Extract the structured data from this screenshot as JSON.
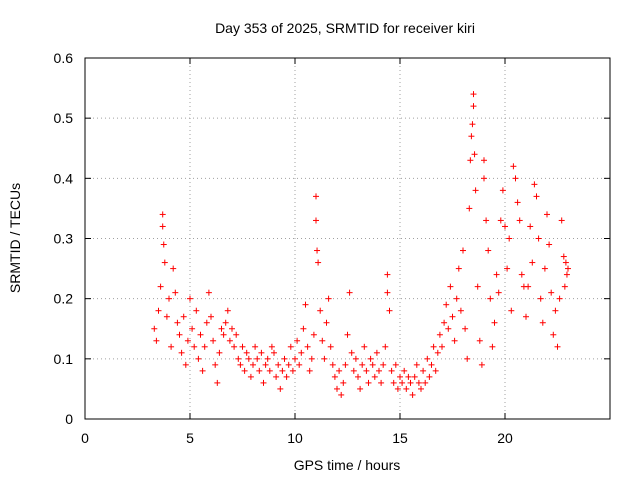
{
  "chart_data": {
    "type": "scatter",
    "title": "Day 353 of 2025, SRMTID for receiver kiri",
    "xlabel": "GPS time / hours",
    "ylabel": "SRMTID / TECUs",
    "xlim": [
      0,
      25
    ],
    "ylim": [
      0,
      0.6
    ],
    "xticks": [
      0,
      5,
      10,
      15,
      20
    ],
    "xtick_labels": [
      "0",
      "5",
      "10",
      "15",
      "20"
    ],
    "yticks": [
      0,
      0.1,
      0.2,
      0.3,
      0.4,
      0.5,
      0.6
    ],
    "ytick_labels": [
      "0",
      "0.1",
      "0.2",
      "0.3",
      "0.4",
      "0.5",
      "0.6"
    ],
    "grid": true,
    "marker": "+",
    "color": "#ff0000",
    "series": [
      {
        "name": "SRMTID",
        "points": [
          [
            3.3,
            0.15
          ],
          [
            3.4,
            0.13
          ],
          [
            3.5,
            0.18
          ],
          [
            3.6,
            0.22
          ],
          [
            3.7,
            0.34
          ],
          [
            3.7,
            0.32
          ],
          [
            3.75,
            0.29
          ],
          [
            3.8,
            0.26
          ],
          [
            3.9,
            0.17
          ],
          [
            4.0,
            0.2
          ],
          [
            4.1,
            0.12
          ],
          [
            4.2,
            0.25
          ],
          [
            4.3,
            0.21
          ],
          [
            4.4,
            0.16
          ],
          [
            4.5,
            0.14
          ],
          [
            4.6,
            0.11
          ],
          [
            4.7,
            0.17
          ],
          [
            4.8,
            0.09
          ],
          [
            4.9,
            0.13
          ],
          [
            5.0,
            0.2
          ],
          [
            5.1,
            0.15
          ],
          [
            5.2,
            0.12
          ],
          [
            5.3,
            0.18
          ],
          [
            5.4,
            0.1
          ],
          [
            5.5,
            0.14
          ],
          [
            5.6,
            0.08
          ],
          [
            5.7,
            0.12
          ],
          [
            5.8,
            0.16
          ],
          [
            5.9,
            0.21
          ],
          [
            6.0,
            0.17
          ],
          [
            6.1,
            0.13
          ],
          [
            6.2,
            0.09
          ],
          [
            6.3,
            0.06
          ],
          [
            6.4,
            0.11
          ],
          [
            6.5,
            0.15
          ],
          [
            6.6,
            0.14
          ],
          [
            6.7,
            0.16
          ],
          [
            6.8,
            0.18
          ],
          [
            6.9,
            0.13
          ],
          [
            7.0,
            0.15
          ],
          [
            7.1,
            0.12
          ],
          [
            7.2,
            0.14
          ],
          [
            7.3,
            0.1
          ],
          [
            7.4,
            0.09
          ],
          [
            7.5,
            0.12
          ],
          [
            7.6,
            0.08
          ],
          [
            7.7,
            0.11
          ],
          [
            7.8,
            0.1
          ],
          [
            7.9,
            0.07
          ],
          [
            8.0,
            0.09
          ],
          [
            8.1,
            0.12
          ],
          [
            8.2,
            0.1
          ],
          [
            8.3,
            0.08
          ],
          [
            8.4,
            0.11
          ],
          [
            8.5,
            0.06
          ],
          [
            8.6,
            0.09
          ],
          [
            8.7,
            0.1
          ],
          [
            8.8,
            0.08
          ],
          [
            8.9,
            0.12
          ],
          [
            9.0,
            0.11
          ],
          [
            9.1,
            0.07
          ],
          [
            9.2,
            0.09
          ],
          [
            9.3,
            0.05
          ],
          [
            9.4,
            0.08
          ],
          [
            9.5,
            0.1
          ],
          [
            9.6,
            0.07
          ],
          [
            9.7,
            0.09
          ],
          [
            9.8,
            0.12
          ],
          [
            9.9,
            0.08
          ],
          [
            10.0,
            0.1
          ],
          [
            10.1,
            0.13
          ],
          [
            10.2,
            0.09
          ],
          [
            10.3,
            0.11
          ],
          [
            10.4,
            0.15
          ],
          [
            10.5,
            0.19
          ],
          [
            10.6,
            0.12
          ],
          [
            10.7,
            0.08
          ],
          [
            10.8,
            0.1
          ],
          [
            10.9,
            0.14
          ],
          [
            11.0,
            0.37
          ],
          [
            11.0,
            0.33
          ],
          [
            11.05,
            0.28
          ],
          [
            11.1,
            0.26
          ],
          [
            11.2,
            0.18
          ],
          [
            11.3,
            0.13
          ],
          [
            11.4,
            0.1
          ],
          [
            11.5,
            0.16
          ],
          [
            11.6,
            0.2
          ],
          [
            11.7,
            0.12
          ],
          [
            11.8,
            0.09
          ],
          [
            11.9,
            0.07
          ],
          [
            12.0,
            0.05
          ],
          [
            12.1,
            0.08
          ],
          [
            12.2,
            0.04
          ],
          [
            12.3,
            0.06
          ],
          [
            12.4,
            0.09
          ],
          [
            12.5,
            0.14
          ],
          [
            12.6,
            0.21
          ],
          [
            12.7,
            0.11
          ],
          [
            12.8,
            0.08
          ],
          [
            12.9,
            0.1
          ],
          [
            13.0,
            0.07
          ],
          [
            13.1,
            0.05
          ],
          [
            13.2,
            0.09
          ],
          [
            13.3,
            0.12
          ],
          [
            13.4,
            0.08
          ],
          [
            13.5,
            0.06
          ],
          [
            13.6,
            0.1
          ],
          [
            13.7,
            0.09
          ],
          [
            13.8,
            0.07
          ],
          [
            13.9,
            0.11
          ],
          [
            14.0,
            0.08
          ],
          [
            14.1,
            0.06
          ],
          [
            14.2,
            0.09
          ],
          [
            14.3,
            0.12
          ],
          [
            14.4,
            0.24
          ],
          [
            14.4,
            0.21
          ],
          [
            14.5,
            0.18
          ],
          [
            14.6,
            0.08
          ],
          [
            14.7,
            0.06
          ],
          [
            14.8,
            0.09
          ],
          [
            14.9,
            0.05
          ],
          [
            15.0,
            0.07
          ],
          [
            15.1,
            0.06
          ],
          [
            15.2,
            0.08
          ],
          [
            15.3,
            0.05
          ],
          [
            15.4,
            0.07
          ],
          [
            15.5,
            0.06
          ],
          [
            15.6,
            0.04
          ],
          [
            15.7,
            0.07
          ],
          [
            15.8,
            0.09
          ],
          [
            15.9,
            0.06
          ],
          [
            16.0,
            0.05
          ],
          [
            16.1,
            0.08
          ],
          [
            16.2,
            0.06
          ],
          [
            16.3,
            0.1
          ],
          [
            16.4,
            0.07
          ],
          [
            16.5,
            0.09
          ],
          [
            16.6,
            0.12
          ],
          [
            16.7,
            0.08
          ],
          [
            16.8,
            0.11
          ],
          [
            16.9,
            0.14
          ],
          [
            17.0,
            0.12
          ],
          [
            17.1,
            0.16
          ],
          [
            17.2,
            0.19
          ],
          [
            17.3,
            0.15
          ],
          [
            17.4,
            0.22
          ],
          [
            17.5,
            0.17
          ],
          [
            17.6,
            0.13
          ],
          [
            17.7,
            0.2
          ],
          [
            17.8,
            0.25
          ],
          [
            17.9,
            0.18
          ],
          [
            18.0,
            0.28
          ],
          [
            18.1,
            0.15
          ],
          [
            18.2,
            0.1
          ],
          [
            18.3,
            0.35
          ],
          [
            18.35,
            0.43
          ],
          [
            18.4,
            0.47
          ],
          [
            18.45,
            0.49
          ],
          [
            18.5,
            0.54
          ],
          [
            18.5,
            0.52
          ],
          [
            18.55,
            0.44
          ],
          [
            18.6,
            0.38
          ],
          [
            18.7,
            0.22
          ],
          [
            18.8,
            0.13
          ],
          [
            18.9,
            0.09
          ],
          [
            19.0,
            0.43
          ],
          [
            19.0,
            0.4
          ],
          [
            19.1,
            0.33
          ],
          [
            19.2,
            0.28
          ],
          [
            19.3,
            0.2
          ],
          [
            19.4,
            0.12
          ],
          [
            19.5,
            0.16
          ],
          [
            19.6,
            0.24
          ],
          [
            19.7,
            0.21
          ],
          [
            19.8,
            0.33
          ],
          [
            19.9,
            0.38
          ],
          [
            20.0,
            0.32
          ],
          [
            20.1,
            0.25
          ],
          [
            20.2,
            0.3
          ],
          [
            20.3,
            0.18
          ],
          [
            20.4,
            0.42
          ],
          [
            20.5,
            0.4
          ],
          [
            20.6,
            0.36
          ],
          [
            20.7,
            0.33
          ],
          [
            20.8,
            0.24
          ],
          [
            20.9,
            0.22
          ],
          [
            21.0,
            0.17
          ],
          [
            21.1,
            0.22
          ],
          [
            21.2,
            0.32
          ],
          [
            21.3,
            0.26
          ],
          [
            21.4,
            0.39
          ],
          [
            21.5,
            0.37
          ],
          [
            21.6,
            0.3
          ],
          [
            21.7,
            0.2
          ],
          [
            21.8,
            0.16
          ],
          [
            21.9,
            0.25
          ],
          [
            22.0,
            0.34
          ],
          [
            22.1,
            0.29
          ],
          [
            22.2,
            0.21
          ],
          [
            22.3,
            0.14
          ],
          [
            22.4,
            0.18
          ],
          [
            22.5,
            0.12
          ],
          [
            22.6,
            0.2
          ],
          [
            22.7,
            0.33
          ],
          [
            22.8,
            0.27
          ],
          [
            22.85,
            0.22
          ],
          [
            22.9,
            0.26
          ],
          [
            22.95,
            0.24
          ],
          [
            23.0,
            0.25
          ]
        ]
      }
    ]
  }
}
